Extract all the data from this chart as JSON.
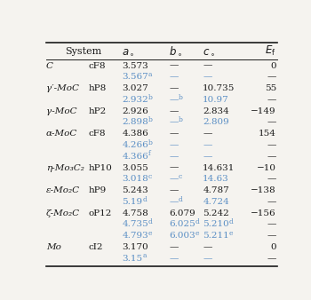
{
  "bg_color": "#f5f3ef",
  "rows": [
    [
      "C",
      "cF8",
      "3.573",
      "—",
      "—",
      "0",
      false
    ],
    [
      "",
      "",
      "3.567",
      "—",
      "—",
      "—",
      true,
      "a"
    ],
    [
      "γ′-MoC",
      "hP8",
      "3.027",
      "—",
      "10.735",
      "55",
      false
    ],
    [
      "",
      "",
      "2.932",
      "—",
      "10.97",
      "—",
      true,
      "b",
      "b"
    ],
    [
      "γ-MoC",
      "hP2",
      "2.926",
      "—",
      "2.834",
      "−149",
      false
    ],
    [
      "",
      "",
      "2.898",
      "—",
      "2.809",
      "—",
      true,
      "b",
      "b"
    ],
    [
      "α-MoC",
      "cF8",
      "4.386",
      "—",
      "—",
      "154",
      false
    ],
    [
      "",
      "",
      "4.266",
      "—",
      "—",
      "—",
      true,
      "b"
    ],
    [
      "",
      "",
      "4.366",
      "—",
      "—",
      "—",
      true,
      "f"
    ],
    [
      "η-Mo₃C₂",
      "hP10",
      "3.055",
      "—",
      "14.631",
      "−10",
      false
    ],
    [
      "",
      "",
      "3.018",
      "—",
      "14.63",
      "—",
      true,
      "c",
      "c"
    ],
    [
      "ε-Mo₂C",
      "hP9",
      "5.243",
      "—",
      "4.787",
      "−138",
      false
    ],
    [
      "",
      "",
      "5.19",
      "—",
      "4.724",
      "—",
      true,
      "d",
      "d"
    ],
    [
      "ζ-Mo₂C",
      "oP12",
      "4.758",
      "6.079",
      "5.242",
      "−156",
      false
    ],
    [
      "",
      "",
      "4.735",
      "6.025",
      "5.210",
      "—",
      true,
      "d",
      "d",
      "d"
    ],
    [
      "",
      "",
      "4.793",
      "6.003",
      "5.211",
      "—",
      true,
      "e",
      "e",
      "e"
    ],
    [
      "Mo",
      "cI2",
      "3.170",
      "—",
      "—",
      "0",
      false
    ],
    [
      "",
      "",
      "3.15",
      "—",
      "—",
      "—",
      true,
      "a"
    ]
  ],
  "sup_color": "#5b8fc5",
  "normal_color": "#1a1a1a",
  "figsize": [
    3.5,
    3.38
  ],
  "dpi": 100
}
